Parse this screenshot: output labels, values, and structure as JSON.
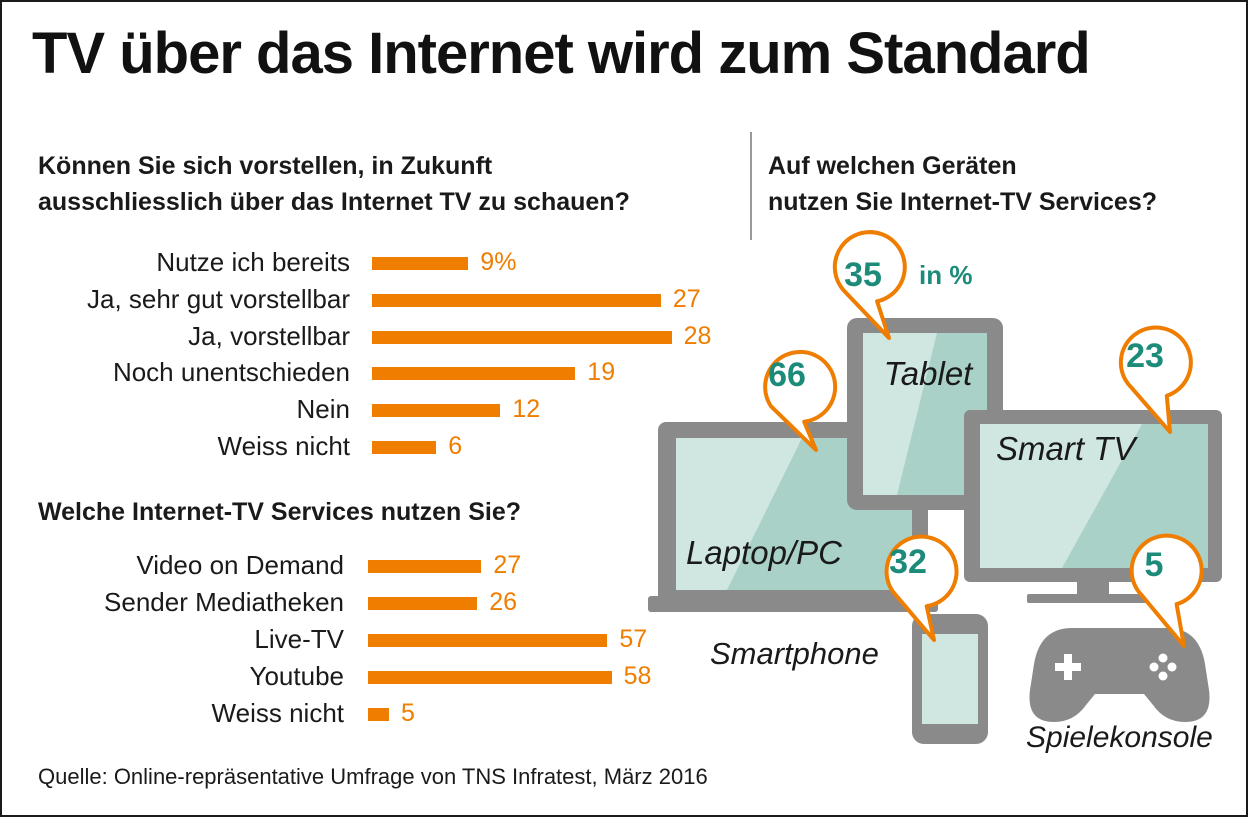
{
  "title": "TV über das Internet wird zum Standard",
  "source": "Quelle: Online-repräsentative Umfrage von TNS Infratest, März 2016",
  "colors": {
    "bar": "#ef7d00",
    "number": "#1d8b7a",
    "device_gray": "#8a8a8a",
    "screen": "#cfe6e1"
  },
  "chart_data": [
    {
      "type": "bar",
      "orientation": "horizontal",
      "title": "Können Sie sich vorstellen, in Zukunft ausschliesslich über das Internet TV zu schauen?",
      "title_lines": [
        "Können Sie sich vorstellen, in Zukunft",
        "ausschliesslich über das Internet TV zu schauen?"
      ],
      "categories": [
        "Nutze ich bereits",
        "Ja, sehr gut vorstellbar",
        "Ja, vorstellbar",
        "Noch unentschieden",
        "Nein",
        "Weiss nicht"
      ],
      "values": [
        9,
        27,
        28,
        19,
        12,
        6
      ],
      "value_labels": [
        "9%",
        "27",
        "28",
        "19",
        "12",
        "6"
      ]
    },
    {
      "type": "bar",
      "orientation": "horizontal",
      "title": "Welche Internet-TV Services nutzen Sie?",
      "categories": [
        "Video on Demand",
        "Sender Mediatheken",
        "Live-TV",
        "Youtube",
        "Weiss nicht"
      ],
      "values": [
        27,
        26,
        57,
        58,
        5
      ],
      "value_labels": [
        "27",
        "26",
        "57",
        "58",
        "5"
      ]
    },
    {
      "type": "other",
      "title": "Auf welchen Geräten nutzen Sie Internet-TV Services?",
      "title_lines": [
        "Auf welchen Geräten",
        "nutzen Sie Internet-TV Services?"
      ],
      "unit": "in %",
      "categories": [
        "Tablet",
        "Laptop/PC",
        "Smart TV",
        "Smartphone",
        "Spielekonsole"
      ],
      "values": [
        35,
        66,
        23,
        32,
        5
      ],
      "icons": [
        "tablet-icon",
        "laptop-icon",
        "smart-tv-icon",
        "smartphone-icon",
        "game-console-icon"
      ]
    }
  ]
}
